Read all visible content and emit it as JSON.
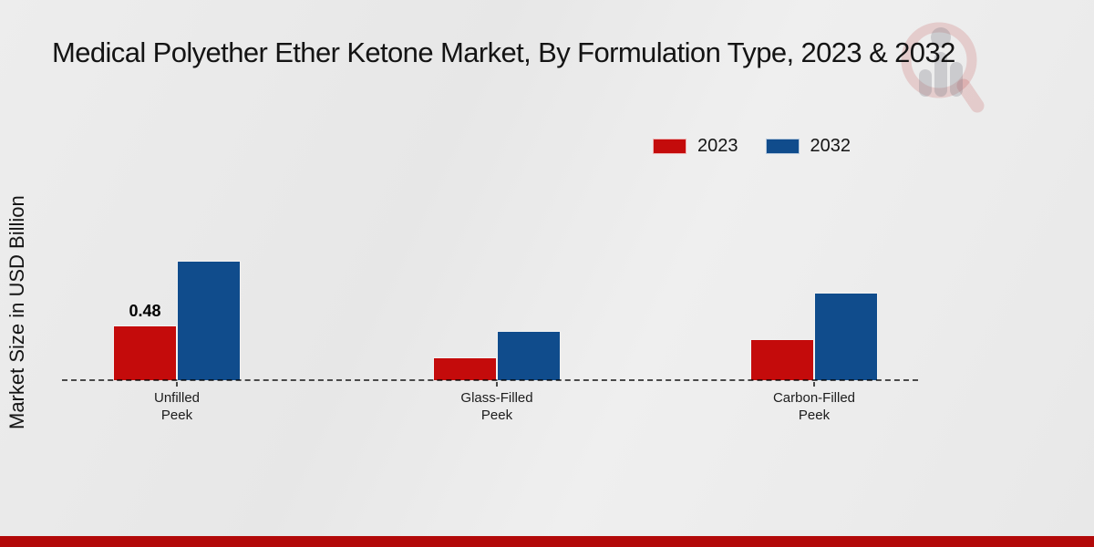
{
  "page": {
    "background_color": "#e9e9e9",
    "footer_bar_color": "#b20909"
  },
  "icons": {
    "watermark_logo": "magnifier-bar-chart-watermark"
  },
  "legend": {
    "position": "top-right",
    "items": [
      {
        "label": "2023",
        "color": "#c40b0b"
      },
      {
        "label": "2032",
        "color": "#104c8c"
      }
    ]
  },
  "chart_data": {
    "type": "bar",
    "title": "Medical Polyether Ether Ketone Market, By Formulation Type, 2023 & 2032",
    "xlabel": "",
    "ylabel": "Market Size in USD Billion",
    "categories": [
      "Unfilled\nPeek",
      "Glass-Filled\nPeek",
      "Carbon-Filled\nPeek"
    ],
    "series": [
      {
        "name": "2023",
        "color": "#c40b0b",
        "values": [
          0.48,
          0.2,
          0.36
        ],
        "data_labels": [
          "0.48",
          "",
          ""
        ]
      },
      {
        "name": "2032",
        "color": "#104c8c",
        "values": [
          1.04,
          0.43,
          0.76
        ],
        "data_labels": [
          "",
          "",
          ""
        ]
      }
    ],
    "ylim": [
      0,
      1.2
    ],
    "grid": false,
    "legend_position": "top-right",
    "baseline_style": "dashed",
    "y_axis_ticks_visible": false
  }
}
